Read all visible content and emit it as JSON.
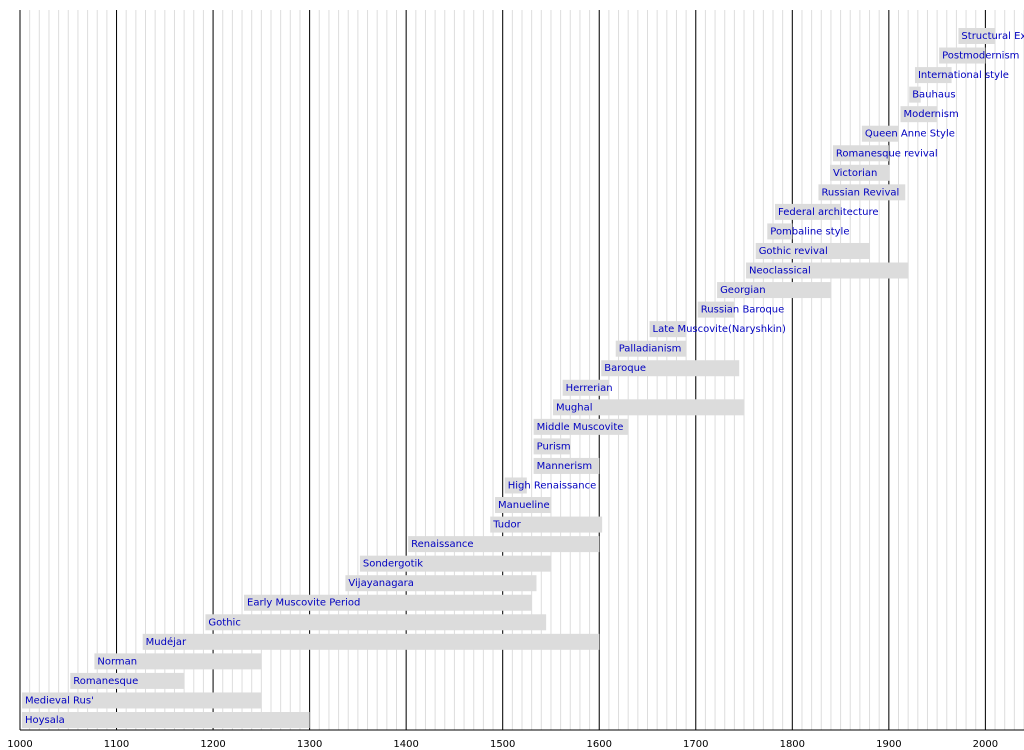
{
  "chart_data": {
    "type": "timeline",
    "bar_color": "#dcdcdc",
    "label_color": "#0000c0",
    "xlim": [
      1000,
      2040
    ],
    "xticks": [
      1000,
      1100,
      1200,
      1300,
      1400,
      1500,
      1600,
      1700,
      1800,
      1900,
      2000
    ],
    "grid": true,
    "bars": [
      {
        "name": "Hoysala",
        "start": 1000,
        "end": 1300
      },
      {
        "name": "Medieval Rus'",
        "start": 1000,
        "end": 1250
      },
      {
        "name": "Romanesque",
        "start": 1050,
        "end": 1170
      },
      {
        "name": "Norman",
        "start": 1075,
        "end": 1250
      },
      {
        "name": "Mudéjar",
        "start": 1125,
        "end": 1600
      },
      {
        "name": "Gothic",
        "start": 1190,
        "end": 1545
      },
      {
        "name": "Early Muscovite Period",
        "start": 1230,
        "end": 1530
      },
      {
        "name": "Vijayanagara",
        "start": 1335,
        "end": 1535
      },
      {
        "name": "Sondergotik",
        "start": 1350,
        "end": 1550
      },
      {
        "name": "Renaissance",
        "start": 1400,
        "end": 1600
      },
      {
        "name": "Tudor",
        "start": 1485,
        "end": 1603
      },
      {
        "name": "Manueline",
        "start": 1490,
        "end": 1550
      },
      {
        "name": "High Renaissance",
        "start": 1500,
        "end": 1525
      },
      {
        "name": "Mannerism",
        "start": 1530,
        "end": 1600
      },
      {
        "name": "Purism",
        "start": 1530,
        "end": 1570
      },
      {
        "name": "Middle Muscovite",
        "start": 1530,
        "end": 1630
      },
      {
        "name": "Mughal",
        "start": 1550,
        "end": 1750
      },
      {
        "name": "Herrerian",
        "start": 1560,
        "end": 1610
      },
      {
        "name": "Baroque",
        "start": 1600,
        "end": 1745
      },
      {
        "name": "Palladianism",
        "start": 1615,
        "end": 1690
      },
      {
        "name": "Late Muscovite(Naryshkin)",
        "start": 1650,
        "end": 1690
      },
      {
        "name": "Russian Baroque",
        "start": 1700,
        "end": 1740
      },
      {
        "name": "Georgian",
        "start": 1720,
        "end": 1840
      },
      {
        "name": "Neoclassical",
        "start": 1750,
        "end": 1920
      },
      {
        "name": "Gothic revival",
        "start": 1760,
        "end": 1880
      },
      {
        "name": "Pombaline style",
        "start": 1772,
        "end": 1800
      },
      {
        "name": "Federal architecture",
        "start": 1780,
        "end": 1850
      },
      {
        "name": "Russian Revival",
        "start": 1825,
        "end": 1917
      },
      {
        "name": "Victorian",
        "start": 1837,
        "end": 1901
      },
      {
        "name": "Romanesque revival",
        "start": 1840,
        "end": 1900
      },
      {
        "name": "Queen Anne Style",
        "start": 1870,
        "end": 1910
      },
      {
        "name": "Modernism",
        "start": 1910,
        "end": 1950
      },
      {
        "name": "Bauhaus",
        "start": 1919,
        "end": 1933
      },
      {
        "name": "International style",
        "start": 1925,
        "end": 1965
      },
      {
        "name": "Postmodernism",
        "start": 1950,
        "end": 2000
      },
      {
        "name": "Structural Expressionism",
        "start": 1970,
        "end": 2010
      }
    ]
  }
}
